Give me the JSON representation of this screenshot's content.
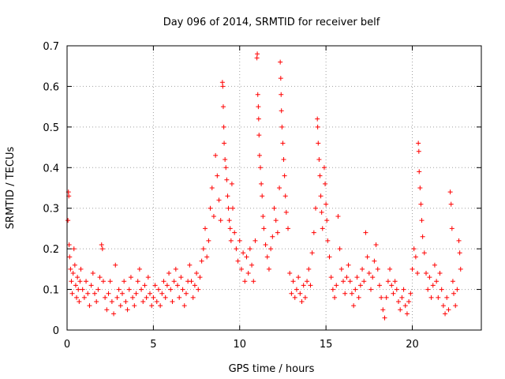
{
  "chart_data": {
    "type": "scatter",
    "title": "Day 096 of 2014, SRMTID for receiver belf",
    "xlabel": "GPS time / hours",
    "ylabel": "SRMTID / TECUs",
    "xlim": [
      0,
      24
    ],
    "ylim": [
      0,
      0.7
    ],
    "xticks": [
      0,
      5,
      10,
      15,
      20
    ],
    "xtick_labels": [
      "0",
      "5",
      "10",
      "15",
      "20"
    ],
    "yticks": [
      0,
      0.1,
      0.2,
      0.3,
      0.4,
      0.5,
      0.6,
      0.7
    ],
    "ytick_labels": [
      "0",
      "0.1",
      "0.2",
      "0.3",
      "0.4",
      "0.5",
      "0.6",
      "0.7"
    ],
    "grid": true,
    "marker": "+",
    "color": "#ff0000",
    "series": [
      {
        "name": "SRMTID",
        "points": [
          [
            0.05,
            0.27
          ],
          [
            0.08,
            0.34
          ],
          [
            0.1,
            0.33
          ],
          [
            0.12,
            0.21
          ],
          [
            0.15,
            0.18
          ],
          [
            0.2,
            0.15
          ],
          [
            0.25,
            0.12
          ],
          [
            0.3,
            0.09
          ],
          [
            0.35,
            0.14
          ],
          [
            0.4,
            0.2
          ],
          [
            0.45,
            0.16
          ],
          [
            0.5,
            0.11
          ],
          [
            0.55,
            0.08
          ],
          [
            0.6,
            0.13
          ],
          [
            0.65,
            0.1
          ],
          [
            0.7,
            0.07
          ],
          [
            0.75,
            0.12
          ],
          [
            0.8,
            0.15
          ],
          [
            0.9,
            0.1
          ],
          [
            1.0,
            0.08
          ],
          [
            1.1,
            0.12
          ],
          [
            1.2,
            0.09
          ],
          [
            1.3,
            0.06
          ],
          [
            1.4,
            0.11
          ],
          [
            1.5,
            0.14
          ],
          [
            1.6,
            0.09
          ],
          [
            1.7,
            0.07
          ],
          [
            1.8,
            0.1
          ],
          [
            1.9,
            0.13
          ],
          [
            2.0,
            0.21
          ],
          [
            2.05,
            0.2
          ],
          [
            2.1,
            0.12
          ],
          [
            2.2,
            0.08
          ],
          [
            2.3,
            0.05
          ],
          [
            2.4,
            0.09
          ],
          [
            2.5,
            0.12
          ],
          [
            2.6,
            0.07
          ],
          [
            2.7,
            0.04
          ],
          [
            2.8,
            0.16
          ],
          [
            2.9,
            0.08
          ],
          [
            3.0,
            0.1
          ],
          [
            3.1,
            0.06
          ],
          [
            3.2,
            0.09
          ],
          [
            3.3,
            0.12
          ],
          [
            3.4,
            0.07
          ],
          [
            3.5,
            0.05
          ],
          [
            3.6,
            0.1
          ],
          [
            3.7,
            0.13
          ],
          [
            3.8,
            0.08
          ],
          [
            3.9,
            0.06
          ],
          [
            4.0,
            0.09
          ],
          [
            4.1,
            0.12
          ],
          [
            4.2,
            0.15
          ],
          [
            4.3,
            0.1
          ],
          [
            4.4,
            0.07
          ],
          [
            4.5,
            0.11
          ],
          [
            4.6,
            0.08
          ],
          [
            4.7,
            0.13
          ],
          [
            4.8,
            0.09
          ],
          [
            4.9,
            0.06
          ],
          [
            5.0,
            0.08
          ],
          [
            5.1,
            0.11
          ],
          [
            5.2,
            0.07
          ],
          [
            5.3,
            0.1
          ],
          [
            5.4,
            0.06
          ],
          [
            5.5,
            0.09
          ],
          [
            5.6,
            0.12
          ],
          [
            5.7,
            0.08
          ],
          [
            5.8,
            0.11
          ],
          [
            5.9,
            0.14
          ],
          [
            6.0,
            0.1
          ],
          [
            6.1,
            0.07
          ],
          [
            6.2,
            0.12
          ],
          [
            6.3,
            0.15
          ],
          [
            6.4,
            0.11
          ],
          [
            6.5,
            0.08
          ],
          [
            6.6,
            0.13
          ],
          [
            6.7,
            0.1
          ],
          [
            6.8,
            0.06
          ],
          [
            6.9,
            0.09
          ],
          [
            7.0,
            0.12
          ],
          [
            7.1,
            0.16
          ],
          [
            7.2,
            0.12
          ],
          [
            7.3,
            0.08
          ],
          [
            7.4,
            0.11
          ],
          [
            7.5,
            0.14
          ],
          [
            7.6,
            0.1
          ],
          [
            7.7,
            0.13
          ],
          [
            7.8,
            0.17
          ],
          [
            7.9,
            0.2
          ],
          [
            8.0,
            0.25
          ],
          [
            8.1,
            0.18
          ],
          [
            8.2,
            0.22
          ],
          [
            8.3,
            0.3
          ],
          [
            8.4,
            0.35
          ],
          [
            8.5,
            0.28
          ],
          [
            8.6,
            0.43
          ],
          [
            8.7,
            0.38
          ],
          [
            8.8,
            0.32
          ],
          [
            8.9,
            0.27
          ],
          [
            9.0,
            0.61
          ],
          [
            9.02,
            0.6
          ],
          [
            9.05,
            0.55
          ],
          [
            9.08,
            0.5
          ],
          [
            9.1,
            0.46
          ],
          [
            9.15,
            0.42
          ],
          [
            9.2,
            0.4
          ],
          [
            9.25,
            0.37
          ],
          [
            9.3,
            0.33
          ],
          [
            9.35,
            0.3
          ],
          [
            9.4,
            0.27
          ],
          [
            9.45,
            0.25
          ],
          [
            9.5,
            0.22
          ],
          [
            9.55,
            0.36
          ],
          [
            9.6,
            0.3
          ],
          [
            9.7,
            0.24
          ],
          [
            9.8,
            0.2
          ],
          [
            9.9,
            0.17
          ],
          [
            10.0,
            0.22
          ],
          [
            10.1,
            0.15
          ],
          [
            10.2,
            0.19
          ],
          [
            10.3,
            0.12
          ],
          [
            10.4,
            0.18
          ],
          [
            10.5,
            0.14
          ],
          [
            10.6,
            0.2
          ],
          [
            10.7,
            0.16
          ],
          [
            10.8,
            0.12
          ],
          [
            10.9,
            0.22
          ],
          [
            11.0,
            0.67
          ],
          [
            11.02,
            0.68
          ],
          [
            11.05,
            0.58
          ],
          [
            11.08,
            0.55
          ],
          [
            11.1,
            0.52
          ],
          [
            11.12,
            0.48
          ],
          [
            11.15,
            0.43
          ],
          [
            11.2,
            0.4
          ],
          [
            11.25,
            0.36
          ],
          [
            11.3,
            0.33
          ],
          [
            11.35,
            0.28
          ],
          [
            11.4,
            0.25
          ],
          [
            11.5,
            0.21
          ],
          [
            11.6,
            0.18
          ],
          [
            11.7,
            0.15
          ],
          [
            11.8,
            0.2
          ],
          [
            11.9,
            0.23
          ],
          [
            12.0,
            0.3
          ],
          [
            12.1,
            0.27
          ],
          [
            12.2,
            0.24
          ],
          [
            12.3,
            0.35
          ],
          [
            12.35,
            0.66
          ],
          [
            12.38,
            0.62
          ],
          [
            12.4,
            0.58
          ],
          [
            12.42,
            0.54
          ],
          [
            12.45,
            0.5
          ],
          [
            12.5,
            0.46
          ],
          [
            12.55,
            0.42
          ],
          [
            12.6,
            0.38
          ],
          [
            12.65,
            0.33
          ],
          [
            12.7,
            0.29
          ],
          [
            12.8,
            0.25
          ],
          [
            12.9,
            0.14
          ],
          [
            13.0,
            0.09
          ],
          [
            13.1,
            0.12
          ],
          [
            13.2,
            0.08
          ],
          [
            13.3,
            0.1
          ],
          [
            13.4,
            0.13
          ],
          [
            13.5,
            0.09
          ],
          [
            13.6,
            0.07
          ],
          [
            13.7,
            0.11
          ],
          [
            13.8,
            0.08
          ],
          [
            13.9,
            0.12
          ],
          [
            14.0,
            0.15
          ],
          [
            14.1,
            0.11
          ],
          [
            14.2,
            0.19
          ],
          [
            14.3,
            0.24
          ],
          [
            14.4,
            0.3
          ],
          [
            14.5,
            0.52
          ],
          [
            14.52,
            0.5
          ],
          [
            14.55,
            0.46
          ],
          [
            14.6,
            0.42
          ],
          [
            14.65,
            0.38
          ],
          [
            14.7,
            0.33
          ],
          [
            14.75,
            0.29
          ],
          [
            14.8,
            0.25
          ],
          [
            14.9,
            0.4
          ],
          [
            14.95,
            0.36
          ],
          [
            15.0,
            0.31
          ],
          [
            15.05,
            0.27
          ],
          [
            15.1,
            0.22
          ],
          [
            15.2,
            0.18
          ],
          [
            15.3,
            0.13
          ],
          [
            15.4,
            0.1
          ],
          [
            15.5,
            0.08
          ],
          [
            15.6,
            0.11
          ],
          [
            15.7,
            0.28
          ],
          [
            15.8,
            0.2
          ],
          [
            15.9,
            0.15
          ],
          [
            16.0,
            0.12
          ],
          [
            16.1,
            0.09
          ],
          [
            16.2,
            0.13
          ],
          [
            16.3,
            0.16
          ],
          [
            16.4,
            0.12
          ],
          [
            16.5,
            0.09
          ],
          [
            16.6,
            0.06
          ],
          [
            16.7,
            0.1
          ],
          [
            16.8,
            0.13
          ],
          [
            16.9,
            0.08
          ],
          [
            17.0,
            0.11
          ],
          [
            17.1,
            0.15
          ],
          [
            17.2,
            0.12
          ],
          [
            17.3,
            0.24
          ],
          [
            17.4,
            0.18
          ],
          [
            17.5,
            0.14
          ],
          [
            17.6,
            0.1
          ],
          [
            17.7,
            0.13
          ],
          [
            17.8,
            0.17
          ],
          [
            17.9,
            0.21
          ],
          [
            18.0,
            0.15
          ],
          [
            18.1,
            0.11
          ],
          [
            18.2,
            0.08
          ],
          [
            18.3,
            0.05
          ],
          [
            18.4,
            0.03
          ],
          [
            18.5,
            0.08
          ],
          [
            18.6,
            0.12
          ],
          [
            18.7,
            0.15
          ],
          [
            18.8,
            0.11
          ],
          [
            18.9,
            0.09
          ],
          [
            19.0,
            0.12
          ],
          [
            19.1,
            0.1
          ],
          [
            19.2,
            0.07
          ],
          [
            19.3,
            0.05
          ],
          [
            19.4,
            0.08
          ],
          [
            19.5,
            0.1
          ],
          [
            19.6,
            0.06
          ],
          [
            19.7,
            0.04
          ],
          [
            19.8,
            0.07
          ],
          [
            19.9,
            0.09
          ],
          [
            20.0,
            0.15
          ],
          [
            20.1,
            0.2
          ],
          [
            20.2,
            0.18
          ],
          [
            20.3,
            0.14
          ],
          [
            20.35,
            0.46
          ],
          [
            20.38,
            0.44
          ],
          [
            20.4,
            0.39
          ],
          [
            20.45,
            0.35
          ],
          [
            20.5,
            0.31
          ],
          [
            20.55,
            0.27
          ],
          [
            20.6,
            0.23
          ],
          [
            20.7,
            0.19
          ],
          [
            20.8,
            0.14
          ],
          [
            20.9,
            0.1
          ],
          [
            21.0,
            0.13
          ],
          [
            21.1,
            0.08
          ],
          [
            21.2,
            0.11
          ],
          [
            21.3,
            0.16
          ],
          [
            21.4,
            0.12
          ],
          [
            21.5,
            0.08
          ],
          [
            21.6,
            0.14
          ],
          [
            21.7,
            0.1
          ],
          [
            21.8,
            0.06
          ],
          [
            21.9,
            0.04
          ],
          [
            22.0,
            0.08
          ],
          [
            22.1,
            0.05
          ],
          [
            22.2,
            0.34
          ],
          [
            22.25,
            0.31
          ],
          [
            22.3,
            0.25
          ],
          [
            22.35,
            0.12
          ],
          [
            22.4,
            0.09
          ],
          [
            22.5,
            0.06
          ],
          [
            22.6,
            0.1
          ],
          [
            22.7,
            0.22
          ],
          [
            22.75,
            0.19
          ],
          [
            22.8,
            0.15
          ]
        ]
      }
    ]
  }
}
